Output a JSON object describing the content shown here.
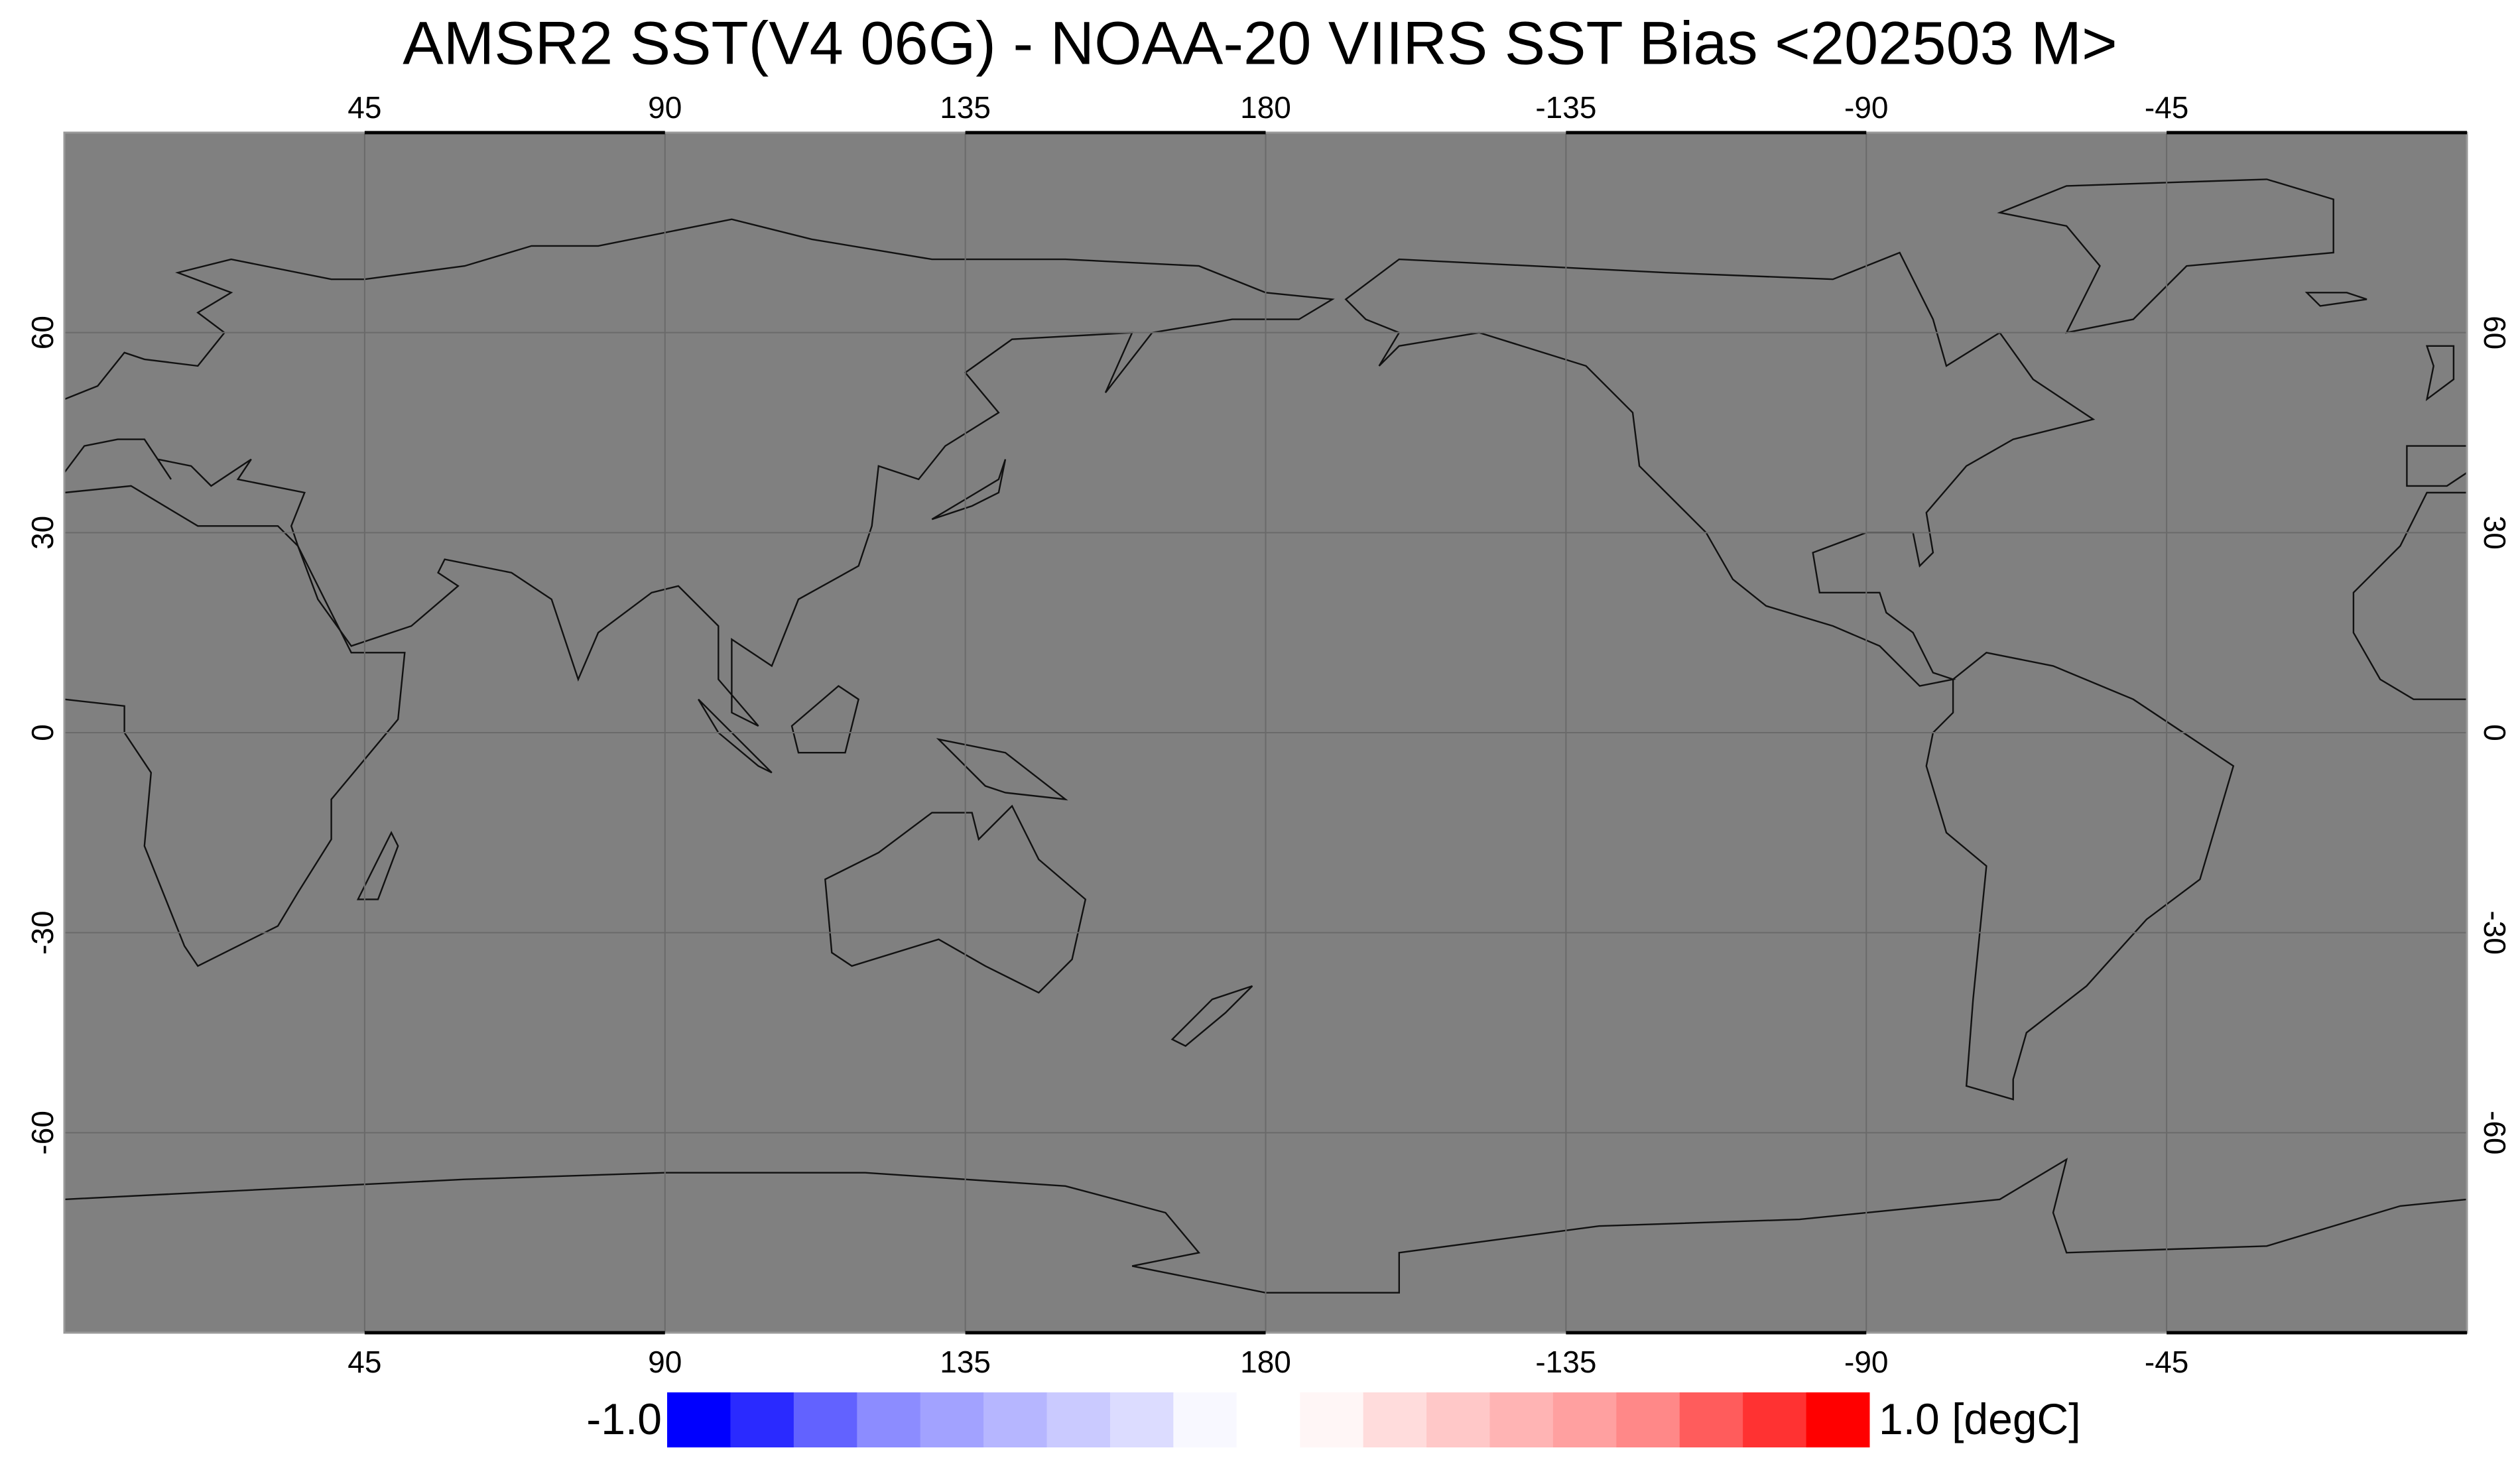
{
  "title": "AMSR2 SST(V4 06G) - NOAA-20 VIIRS SST Bias <202503 M>",
  "map": {
    "xlim": [
      0,
      360
    ],
    "ylim": [
      -90,
      90
    ],
    "xticks": [
      45,
      90,
      135,
      180,
      {
        "value": 225,
        "label": "-135"
      },
      {
        "value": 270,
        "label": "-90"
      },
      {
        "value": 315,
        "label": "-45"
      }
    ],
    "yticks": [
      -60,
      -30,
      0,
      30,
      60
    ],
    "grid": true,
    "fill": "#808080"
  },
  "colorbar": {
    "min": {
      "value": -1,
      "label": "-1.0"
    },
    "max": {
      "value": 1,
      "label": "1.0 [degC]"
    },
    "colors": [
      "#0000ff",
      "#2a2aff",
      "#6262ff",
      "#8c8cff",
      "#a2a2ff",
      "#b6b6ff",
      "#cacaff",
      "#dcdcff",
      "#f8f8ff",
      "#ffffff",
      "#fff6f6",
      "#ffdcdc",
      "#ffc8c8",
      "#ffb4b4",
      "#ffa0a0",
      "#ff8888",
      "#ff5c5c",
      "#ff3232",
      "#ff0000"
    ]
  }
}
